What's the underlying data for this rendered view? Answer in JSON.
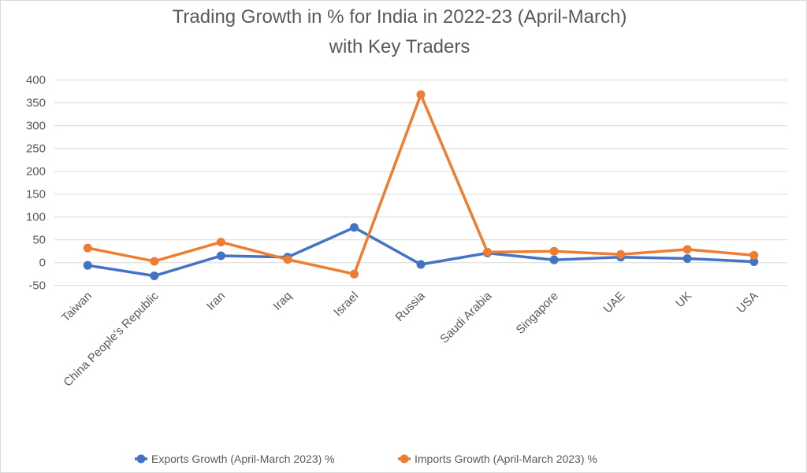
{
  "chart_data": {
    "type": "line",
    "title": [
      "Trading Growth in % for India in 2022-23 (April-March)",
      "with Key Traders"
    ],
    "xlabel": "",
    "ylabel": "",
    "categories": [
      "Taiwan",
      "China People's Republic",
      "Iran",
      "Iraq",
      "Israel",
      "Russia",
      "Saudi Arabia",
      "Singapore",
      "UAE",
      "UK",
      "USA"
    ],
    "ylim": [
      -50,
      400
    ],
    "yticks": [
      400,
      350,
      300,
      250,
      200,
      150,
      100,
      50,
      0,
      -50
    ],
    "grid": true,
    "legend_position": "bottom",
    "series": [
      {
        "name": "Exports Growth (April-March 2023) %",
        "color": "#4472C4",
        "values": [
          -6,
          -29,
          15,
          12,
          77,
          -4,
          21,
          6,
          12,
          9,
          2
        ]
      },
      {
        "name": "Imports Growth (April-March 2023) %",
        "color": "#ED7D31",
        "values": [
          32,
          3,
          45,
          7,
          -25,
          368,
          23,
          25,
          18,
          29,
          16
        ]
      }
    ]
  }
}
